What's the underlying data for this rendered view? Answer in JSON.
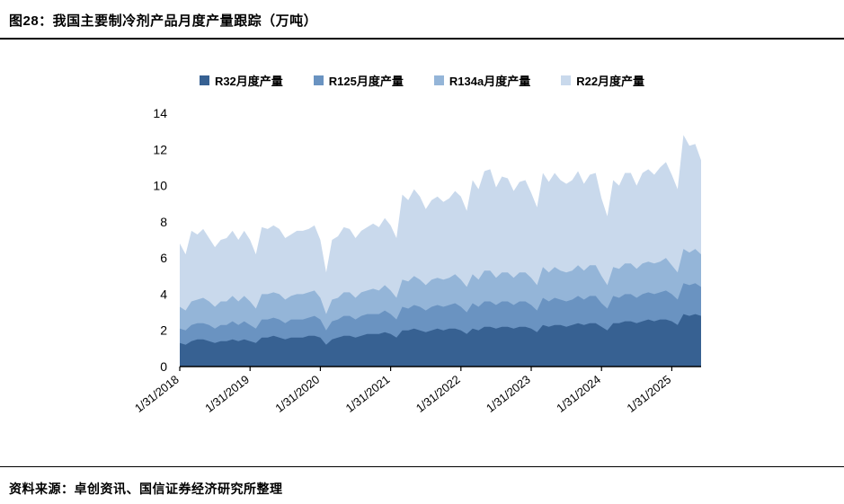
{
  "figure": {
    "title": "图28：我国主要制冷剂产品月度产量跟踪（万吨）",
    "source": "资料来源：卓创资讯、国信证券经济研究所整理"
  },
  "chart_data": {
    "type": "area",
    "stacked": true,
    "title": "我国主要制冷剂产品月度产量跟踪（万吨）",
    "xlabel": "",
    "ylabel": "",
    "ylim": [
      0,
      14
    ],
    "y_ticks": [
      0,
      2,
      4,
      6,
      8,
      10,
      12,
      14
    ],
    "x_tick_labels": [
      "1/31/2018",
      "1/31/2019",
      "1/31/2020",
      "1/31/2021",
      "1/31/2022",
      "1/31/2023",
      "1/31/2024",
      "1/31/2025"
    ],
    "x_tick_indices": [
      0,
      12,
      24,
      36,
      48,
      60,
      72,
      84
    ],
    "x_frequency": "monthly",
    "legend_position": "top",
    "grid": false,
    "series": [
      {
        "name": "R32月度产量",
        "color": "#376192",
        "values": [
          1.3,
          1.2,
          1.4,
          1.5,
          1.5,
          1.4,
          1.3,
          1.4,
          1.4,
          1.5,
          1.4,
          1.5,
          1.4,
          1.3,
          1.6,
          1.6,
          1.7,
          1.6,
          1.5,
          1.6,
          1.6,
          1.6,
          1.7,
          1.7,
          1.6,
          1.2,
          1.5,
          1.6,
          1.7,
          1.7,
          1.6,
          1.7,
          1.8,
          1.8,
          1.8,
          1.9,
          1.8,
          1.6,
          2.0,
          2.0,
          2.1,
          2.0,
          1.9,
          2.0,
          2.1,
          2.0,
          2.1,
          2.1,
          2.0,
          1.8,
          2.1,
          2.0,
          2.2,
          2.2,
          2.1,
          2.2,
          2.2,
          2.1,
          2.2,
          2.2,
          2.1,
          1.9,
          2.3,
          2.2,
          2.3,
          2.3,
          2.2,
          2.3,
          2.4,
          2.3,
          2.4,
          2.4,
          2.2,
          2.0,
          2.4,
          2.4,
          2.5,
          2.5,
          2.4,
          2.5,
          2.6,
          2.5,
          2.6,
          2.6,
          2.5,
          2.3,
          2.9,
          2.8,
          2.9,
          2.8
        ]
      },
      {
        "name": "R125月度产量",
        "color": "#6A93C1",
        "values": [
          0.8,
          0.8,
          0.9,
          0.9,
          0.9,
          0.9,
          0.8,
          0.9,
          0.9,
          1.0,
          0.9,
          1.0,
          0.9,
          0.8,
          1.0,
          1.0,
          1.0,
          1.0,
          0.9,
          1.0,
          1.0,
          1.0,
          1.0,
          1.1,
          1.0,
          0.8,
          1.0,
          1.0,
          1.1,
          1.1,
          1.0,
          1.1,
          1.1,
          1.1,
          1.1,
          1.2,
          1.1,
          1.0,
          1.3,
          1.2,
          1.3,
          1.3,
          1.2,
          1.3,
          1.3,
          1.3,
          1.3,
          1.4,
          1.3,
          1.2,
          1.4,
          1.3,
          1.4,
          1.4,
          1.3,
          1.4,
          1.4,
          1.3,
          1.4,
          1.4,
          1.3,
          1.2,
          1.5,
          1.4,
          1.5,
          1.4,
          1.4,
          1.4,
          1.5,
          1.4,
          1.5,
          1.5,
          1.3,
          1.2,
          1.5,
          1.4,
          1.5,
          1.5,
          1.4,
          1.5,
          1.5,
          1.5,
          1.5,
          1.6,
          1.5,
          1.4,
          1.7,
          1.7,
          1.7,
          1.6
        ]
      },
      {
        "name": "R134a月度产量",
        "color": "#94B5D8",
        "values": [
          1.2,
          1.1,
          1.3,
          1.3,
          1.4,
          1.3,
          1.2,
          1.3,
          1.3,
          1.4,
          1.3,
          1.4,
          1.3,
          1.1,
          1.4,
          1.4,
          1.4,
          1.4,
          1.3,
          1.3,
          1.4,
          1.4,
          1.4,
          1.4,
          1.2,
          0.9,
          1.2,
          1.2,
          1.3,
          1.3,
          1.2,
          1.3,
          1.3,
          1.4,
          1.3,
          1.4,
          1.3,
          1.2,
          1.5,
          1.5,
          1.6,
          1.5,
          1.4,
          1.5,
          1.5,
          1.5,
          1.5,
          1.6,
          1.5,
          1.4,
          1.6,
          1.5,
          1.7,
          1.7,
          1.5,
          1.6,
          1.6,
          1.5,
          1.6,
          1.6,
          1.5,
          1.4,
          1.7,
          1.6,
          1.7,
          1.6,
          1.6,
          1.6,
          1.7,
          1.6,
          1.7,
          1.7,
          1.5,
          1.3,
          1.6,
          1.6,
          1.7,
          1.7,
          1.6,
          1.7,
          1.7,
          1.7,
          1.7,
          1.8,
          1.6,
          1.5,
          1.9,
          1.8,
          1.9,
          1.8
        ]
      },
      {
        "name": "R22月度产量",
        "color": "#C9D9EC",
        "values": [
          3.5,
          3.1,
          3.9,
          3.6,
          3.8,
          3.5,
          3.3,
          3.4,
          3.5,
          3.6,
          3.4,
          3.6,
          3.4,
          3.0,
          3.7,
          3.6,
          3.7,
          3.6,
          3.4,
          3.4,
          3.5,
          3.5,
          3.5,
          3.6,
          3.2,
          2.3,
          3.3,
          3.4,
          3.6,
          3.5,
          3.3,
          3.4,
          3.5,
          3.6,
          3.5,
          3.7,
          3.6,
          3.3,
          4.7,
          4.5,
          4.8,
          4.6,
          4.2,
          4.4,
          4.5,
          4.3,
          4.4,
          4.6,
          4.6,
          4.2,
          5.2,
          5.0,
          5.5,
          5.6,
          5.0,
          5.3,
          5.2,
          4.8,
          5.0,
          5.1,
          4.7,
          4.3,
          5.2,
          5.0,
          5.2,
          5.0,
          4.9,
          5.0,
          5.2,
          4.8,
          5.0,
          5.1,
          4.3,
          3.8,
          4.8,
          4.6,
          5.0,
          5.0,
          4.6,
          5.0,
          5.1,
          4.9,
          5.2,
          5.3,
          5.0,
          4.6,
          6.3,
          5.9,
          5.8,
          5.2
        ]
      }
    ]
  }
}
